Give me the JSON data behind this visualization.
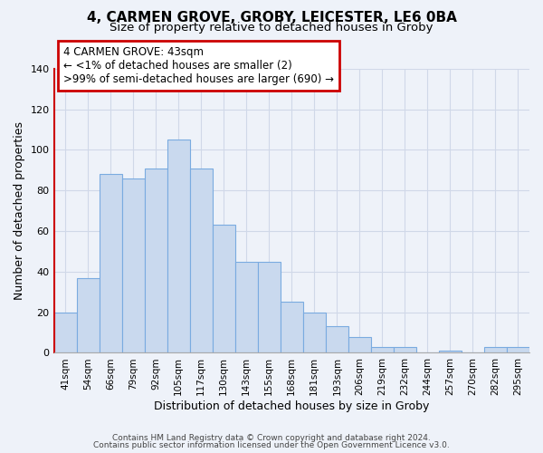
{
  "title": "4, CARMEN GROVE, GROBY, LEICESTER, LE6 0BA",
  "subtitle": "Size of property relative to detached houses in Groby",
  "xlabel": "Distribution of detached houses by size in Groby",
  "ylabel": "Number of detached properties",
  "bins": [
    "41sqm",
    "54sqm",
    "66sqm",
    "79sqm",
    "92sqm",
    "105sqm",
    "117sqm",
    "130sqm",
    "143sqm",
    "155sqm",
    "168sqm",
    "181sqm",
    "193sqm",
    "206sqm",
    "219sqm",
    "232sqm",
    "244sqm",
    "257sqm",
    "270sqm",
    "282sqm",
    "295sqm"
  ],
  "values": [
    20,
    37,
    88,
    86,
    91,
    105,
    91,
    63,
    45,
    45,
    25,
    20,
    13,
    8,
    3,
    3,
    0,
    1,
    0,
    3,
    3
  ],
  "highlight_index": 0,
  "bar_color": "#c9d9ee",
  "bar_edge_color": "#7aabe0",
  "highlight_bar_color": "#c9d9ee",
  "highlight_bar_edge_color": "#7aabe0",
  "annotation_text": "4 CARMEN GROVE: 43sqm\n← <1% of detached houses are smaller (2)\n>99% of semi-detached houses are larger (690) →",
  "annotation_box_color": "#ffffff",
  "annotation_box_edge_color": "#cc0000",
  "ylim": [
    0,
    140
  ],
  "yticks": [
    0,
    20,
    40,
    60,
    80,
    100,
    120,
    140
  ],
  "footer1": "Contains HM Land Registry data © Crown copyright and database right 2024.",
  "footer2": "Contains public sector information licensed under the Open Government Licence v3.0.",
  "bg_color": "#eef2f9",
  "plot_bg_color": "#eef2f9",
  "grid_color": "#d0d8e8",
  "left_spine_color": "#cc0000",
  "title_fontsize": 11,
  "subtitle_fontsize": 9.5,
  "tick_fontsize": 7.5,
  "ylabel_fontsize": 9,
  "xlabel_fontsize": 9,
  "annotation_fontsize": 8.5
}
